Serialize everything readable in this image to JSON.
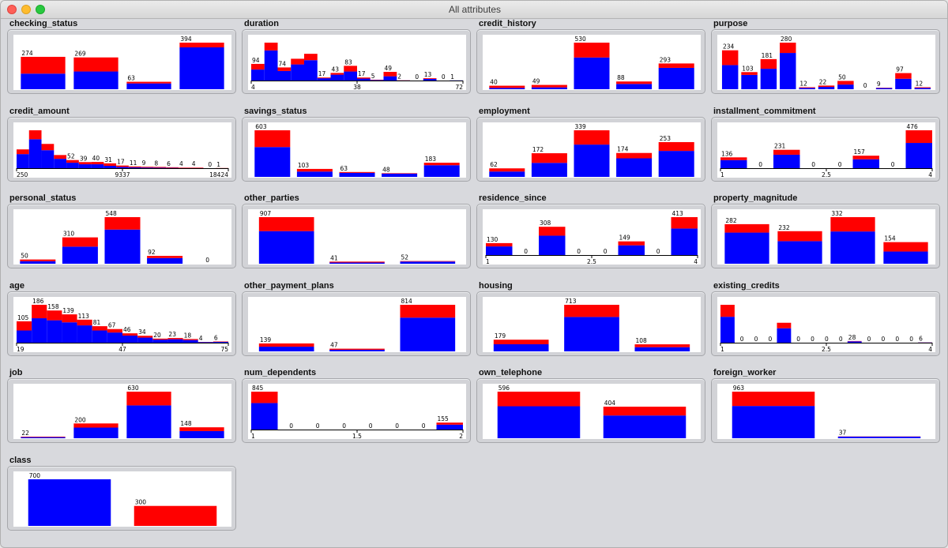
{
  "window": {
    "title": "All attributes"
  },
  "colors": {
    "blue": "#0000ff",
    "red": "#ff0000",
    "axis": "#000000"
  },
  "chart_data": [
    {
      "name": "checking_status",
      "type": "bar",
      "values": [
        274,
        269,
        63,
        394
      ],
      "blue": [
        132,
        150,
        49,
        354
      ]
    },
    {
      "name": "duration",
      "type": "bar",
      "values": [
        94,
        214,
        74,
        123,
        151,
        17,
        43,
        83,
        17,
        5,
        49,
        2,
        0,
        13,
        0,
        1
      ],
      "blue": [
        62,
        170,
        54,
        91,
        115,
        13,
        33,
        51,
        11,
        3,
        24,
        1,
        0,
        9,
        0,
        1
      ],
      "labeled": [
        0,
        2,
        5,
        6,
        7,
        8,
        9,
        10,
        11,
        12,
        13,
        14,
        15
      ],
      "ticks": [
        "4",
        "38",
        "72"
      ]
    },
    {
      "name": "credit_history",
      "type": "bar",
      "values": [
        40,
        49,
        530,
        88,
        293
      ],
      "blue": [
        15,
        21,
        361,
        60,
        243
      ]
    },
    {
      "name": "purpose",
      "type": "bar",
      "values": [
        234,
        103,
        181,
        280,
        12,
        22,
        50,
        0,
        9,
        97,
        12
      ],
      "blue": [
        145,
        86,
        123,
        218,
        8,
        14,
        28,
        0,
        7,
        63,
        8
      ]
    },
    {
      "name": "credit_amount",
      "type": "bar",
      "values": [
        120,
        242,
        155,
        84,
        52,
        39,
        40,
        31,
        17,
        11,
        9,
        8,
        6,
        4,
        4,
        0,
        1
      ],
      "blue": [
        90,
        185,
        115,
        60,
        35,
        25,
        25,
        15,
        8,
        5,
        4,
        3,
        2,
        1,
        1,
        0,
        0
      ],
      "labeled": [
        4,
        5,
        6,
        7,
        8,
        9,
        10,
        11,
        12,
        13,
        14,
        15,
        16
      ],
      "ticks": [
        "250",
        "9337",
        "18424"
      ]
    },
    {
      "name": "savings_status",
      "type": "bar",
      "values": [
        603,
        103,
        63,
        48,
        183
      ],
      "blue": [
        386,
        69,
        52,
        42,
        151
      ]
    },
    {
      "name": "employment",
      "type": "bar",
      "values": [
        62,
        172,
        339,
        174,
        253
      ],
      "blue": [
        39,
        102,
        235,
        135,
        189
      ]
    },
    {
      "name": "installment_commitment",
      "type": "bar",
      "values": [
        136,
        0,
        231,
        0,
        0,
        157,
        0,
        476
      ],
      "blue": [
        102,
        0,
        169,
        0,
        0,
        112,
        0,
        317
      ],
      "ticks": [
        "1",
        "2.5",
        "4"
      ]
    },
    {
      "name": "personal_status",
      "type": "bar",
      "values": [
        50,
        310,
        548,
        92,
        0
      ],
      "blue": [
        30,
        201,
        402,
        67,
        0
      ]
    },
    {
      "name": "other_parties",
      "type": "bar",
      "values": [
        907,
        41,
        52
      ],
      "blue": [
        635,
        23,
        42
      ]
    },
    {
      "name": "residence_since",
      "type": "bar",
      "values": [
        130,
        0,
        308,
        0,
        0,
        149,
        0,
        413
      ],
      "blue": [
        94,
        0,
        211,
        0,
        0,
        106,
        0,
        289
      ],
      "ticks": [
        "1",
        "2.5",
        "4"
      ]
    },
    {
      "name": "property_magnitude",
      "type": "bar",
      "values": [
        282,
        232,
        332,
        154
      ],
      "blue": [
        222,
        161,
        230,
        87
      ]
    },
    {
      "name": "age",
      "type": "bar",
      "values": [
        105,
        186,
        158,
        139,
        113,
        81,
        67,
        46,
        34,
        20,
        23,
        18,
        4,
        6
      ],
      "blue": [
        60,
        120,
        110,
        100,
        85,
        60,
        50,
        35,
        25,
        15,
        17,
        13,
        3,
        4
      ],
      "ticks": [
        "19",
        "47",
        "75"
      ]
    },
    {
      "name": "other_payment_plans",
      "type": "bar",
      "values": [
        139,
        47,
        814
      ],
      "blue": [
        82,
        28,
        590
      ]
    },
    {
      "name": "housing",
      "type": "bar",
      "values": [
        179,
        713,
        108
      ],
      "blue": [
        109,
        527,
        64
      ]
    },
    {
      "name": "existing_credits",
      "type": "bar",
      "values": [
        633,
        0,
        0,
        0,
        333,
        0,
        0,
        0,
        0,
        28,
        0,
        0,
        0,
        0,
        6
      ],
      "blue": [
        433,
        0,
        0,
        0,
        241,
        0,
        0,
        0,
        0,
        22,
        0,
        0,
        0,
        0,
        4
      ],
      "labeled": [
        1,
        2,
        3,
        5,
        6,
        7,
        8,
        9,
        10,
        11,
        12,
        13,
        14
      ],
      "ticks": [
        "1",
        "2.5",
        "4"
      ]
    },
    {
      "name": "job",
      "type": "bar",
      "values": [
        22,
        200,
        630,
        148
      ],
      "blue": [
        15,
        144,
        444,
        97
      ]
    },
    {
      "name": "num_dependents",
      "type": "bar",
      "values": [
        845,
        0,
        0,
        0,
        0,
        0,
        0,
        155
      ],
      "blue": [
        591,
        0,
        0,
        0,
        0,
        0,
        0,
        109
      ],
      "ticks": [
        "1",
        "1.5",
        "2"
      ]
    },
    {
      "name": "own_telephone",
      "type": "bar",
      "values": [
        596,
        404
      ],
      "blue": [
        409,
        291
      ]
    },
    {
      "name": "foreign_worker",
      "type": "bar",
      "values": [
        963,
        37
      ],
      "blue": [
        667,
        33
      ]
    },
    {
      "name": "class",
      "type": "bar",
      "values": [
        700,
        300
      ],
      "blue": [
        700,
        0
      ]
    }
  ]
}
